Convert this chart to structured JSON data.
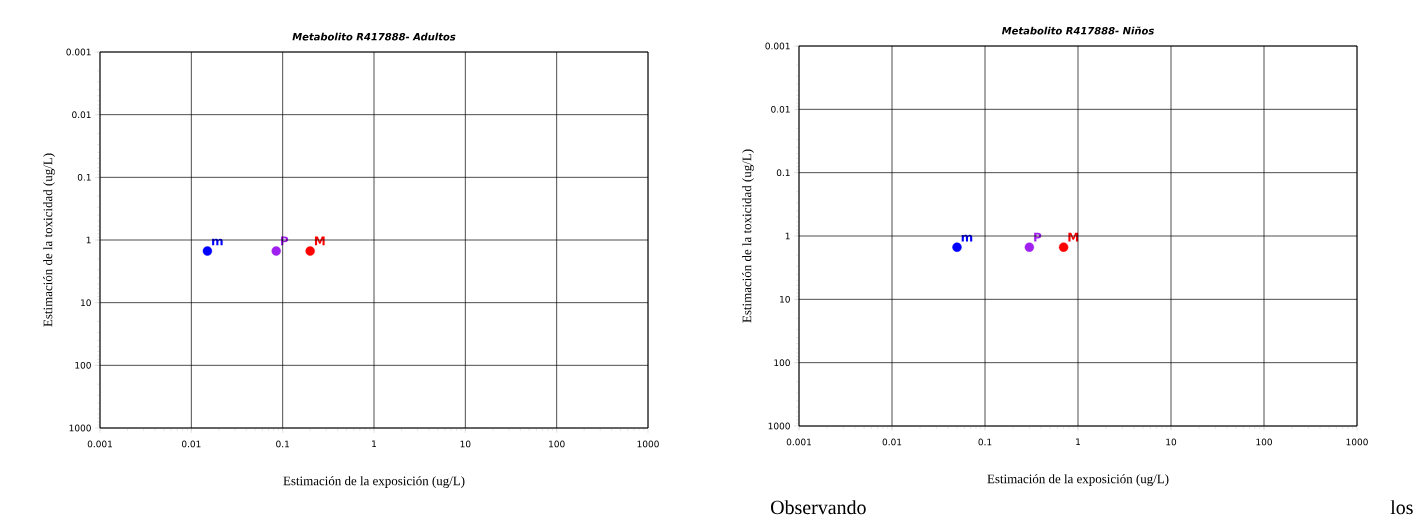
{
  "chart_data": [
    {
      "type": "scatter",
      "title": "Metabolito R417888- Adultos",
      "xlabel": "Estimación de la exposición (ug/L)",
      "ylabel": "Estimación de la toxicidad (ug/L)",
      "log": "xy",
      "grid": true,
      "legend": false,
      "xlim": [
        0.001,
        1000
      ],
      "ylim": [
        1000,
        0.001
      ],
      "xticks": [
        0.001,
        0.01,
        0.1,
        1,
        10,
        100,
        1000
      ],
      "yticks": [
        0.001,
        0.01,
        0.1,
        1,
        10,
        100,
        1000
      ],
      "series": [
        {
          "name": "m",
          "color": "#0000ff",
          "x": [
            0.015
          ],
          "values": [
            1.5
          ]
        },
        {
          "name": "P",
          "color": "#a020f0",
          "x": [
            0.085
          ],
          "values": [
            1.5
          ]
        },
        {
          "name": "M",
          "color": "#ff0000",
          "x": [
            0.2
          ],
          "values": [
            1.5
          ]
        }
      ]
    },
    {
      "type": "scatter",
      "title": "Metabolito R417888- Niños",
      "xlabel": "Estimación de la exposición (ug/L)",
      "ylabel": "Estimación de la toxicidad (ug/L)",
      "log": "xy",
      "grid": true,
      "legend": false,
      "xlim": [
        0.001,
        1000
      ],
      "ylim": [
        1000,
        0.001
      ],
      "xticks": [
        0.001,
        0.01,
        0.1,
        1,
        10,
        100,
        1000
      ],
      "yticks": [
        0.001,
        0.01,
        0.1,
        1,
        10,
        100,
        1000
      ],
      "series": [
        {
          "name": "m",
          "color": "#0000ff",
          "x": [
            0.05
          ],
          "values": [
            1.5
          ]
        },
        {
          "name": "P",
          "color": "#a020f0",
          "x": [
            0.3
          ],
          "values": [
            1.5
          ]
        },
        {
          "name": "M",
          "color": "#ff0000",
          "x": [
            0.7
          ],
          "values": [
            1.5
          ]
        }
      ],
      "annotations": [
        "Observando",
        "los"
      ]
    }
  ]
}
